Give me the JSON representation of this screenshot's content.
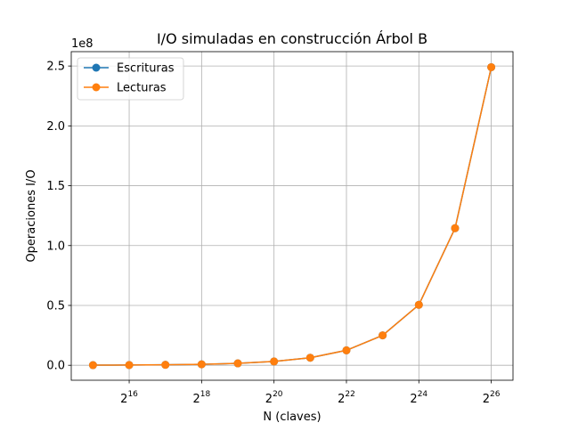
{
  "chart_data": {
    "type": "line",
    "title": "I/O simuladas en construcción Árbol B",
    "xlabel": "N (claves)",
    "ylabel": "Operaciones I/O",
    "y_offset_label": "1e8",
    "x_scale": "log2",
    "x": [
      32768,
      65536,
      131072,
      262144,
      524288,
      1048576,
      2097152,
      4194304,
      8388608,
      16777216,
      33554432,
      67108864
    ],
    "x_tick_values": [
      65536,
      262144,
      1048576,
      4194304,
      16777216,
      67108864
    ],
    "x_ticks": [
      {
        "base": "2",
        "exp": "16"
      },
      {
        "base": "2",
        "exp": "18"
      },
      {
        "base": "2",
        "exp": "20"
      },
      {
        "base": "2",
        "exp": "22"
      },
      {
        "base": "2",
        "exp": "24"
      },
      {
        "base": "2",
        "exp": "26"
      }
    ],
    "y_ticks": [
      "0.0",
      "0.5",
      "1.0",
      "1.5",
      "2.0",
      "2.5"
    ],
    "y_tick_values": [
      0,
      50000000,
      100000000,
      150000000,
      200000000,
      250000000
    ],
    "ylim": [
      -12500000,
      262000000
    ],
    "grid": true,
    "legend_position": "upper-left",
    "series": [
      {
        "name": "Escrituras",
        "color": "#1f77b4",
        "values": [
          100000,
          200000,
          400000,
          800000,
          1600000,
          3200000,
          6300000,
          12500000,
          25000000,
          50500000,
          114500000,
          249000000
        ]
      },
      {
        "name": "Lecturas",
        "color": "#ff7f0e",
        "values": [
          100000,
          200000,
          400000,
          800000,
          1600000,
          3200000,
          6300000,
          12500000,
          25000000,
          50500000,
          114500000,
          249000000
        ]
      }
    ]
  }
}
